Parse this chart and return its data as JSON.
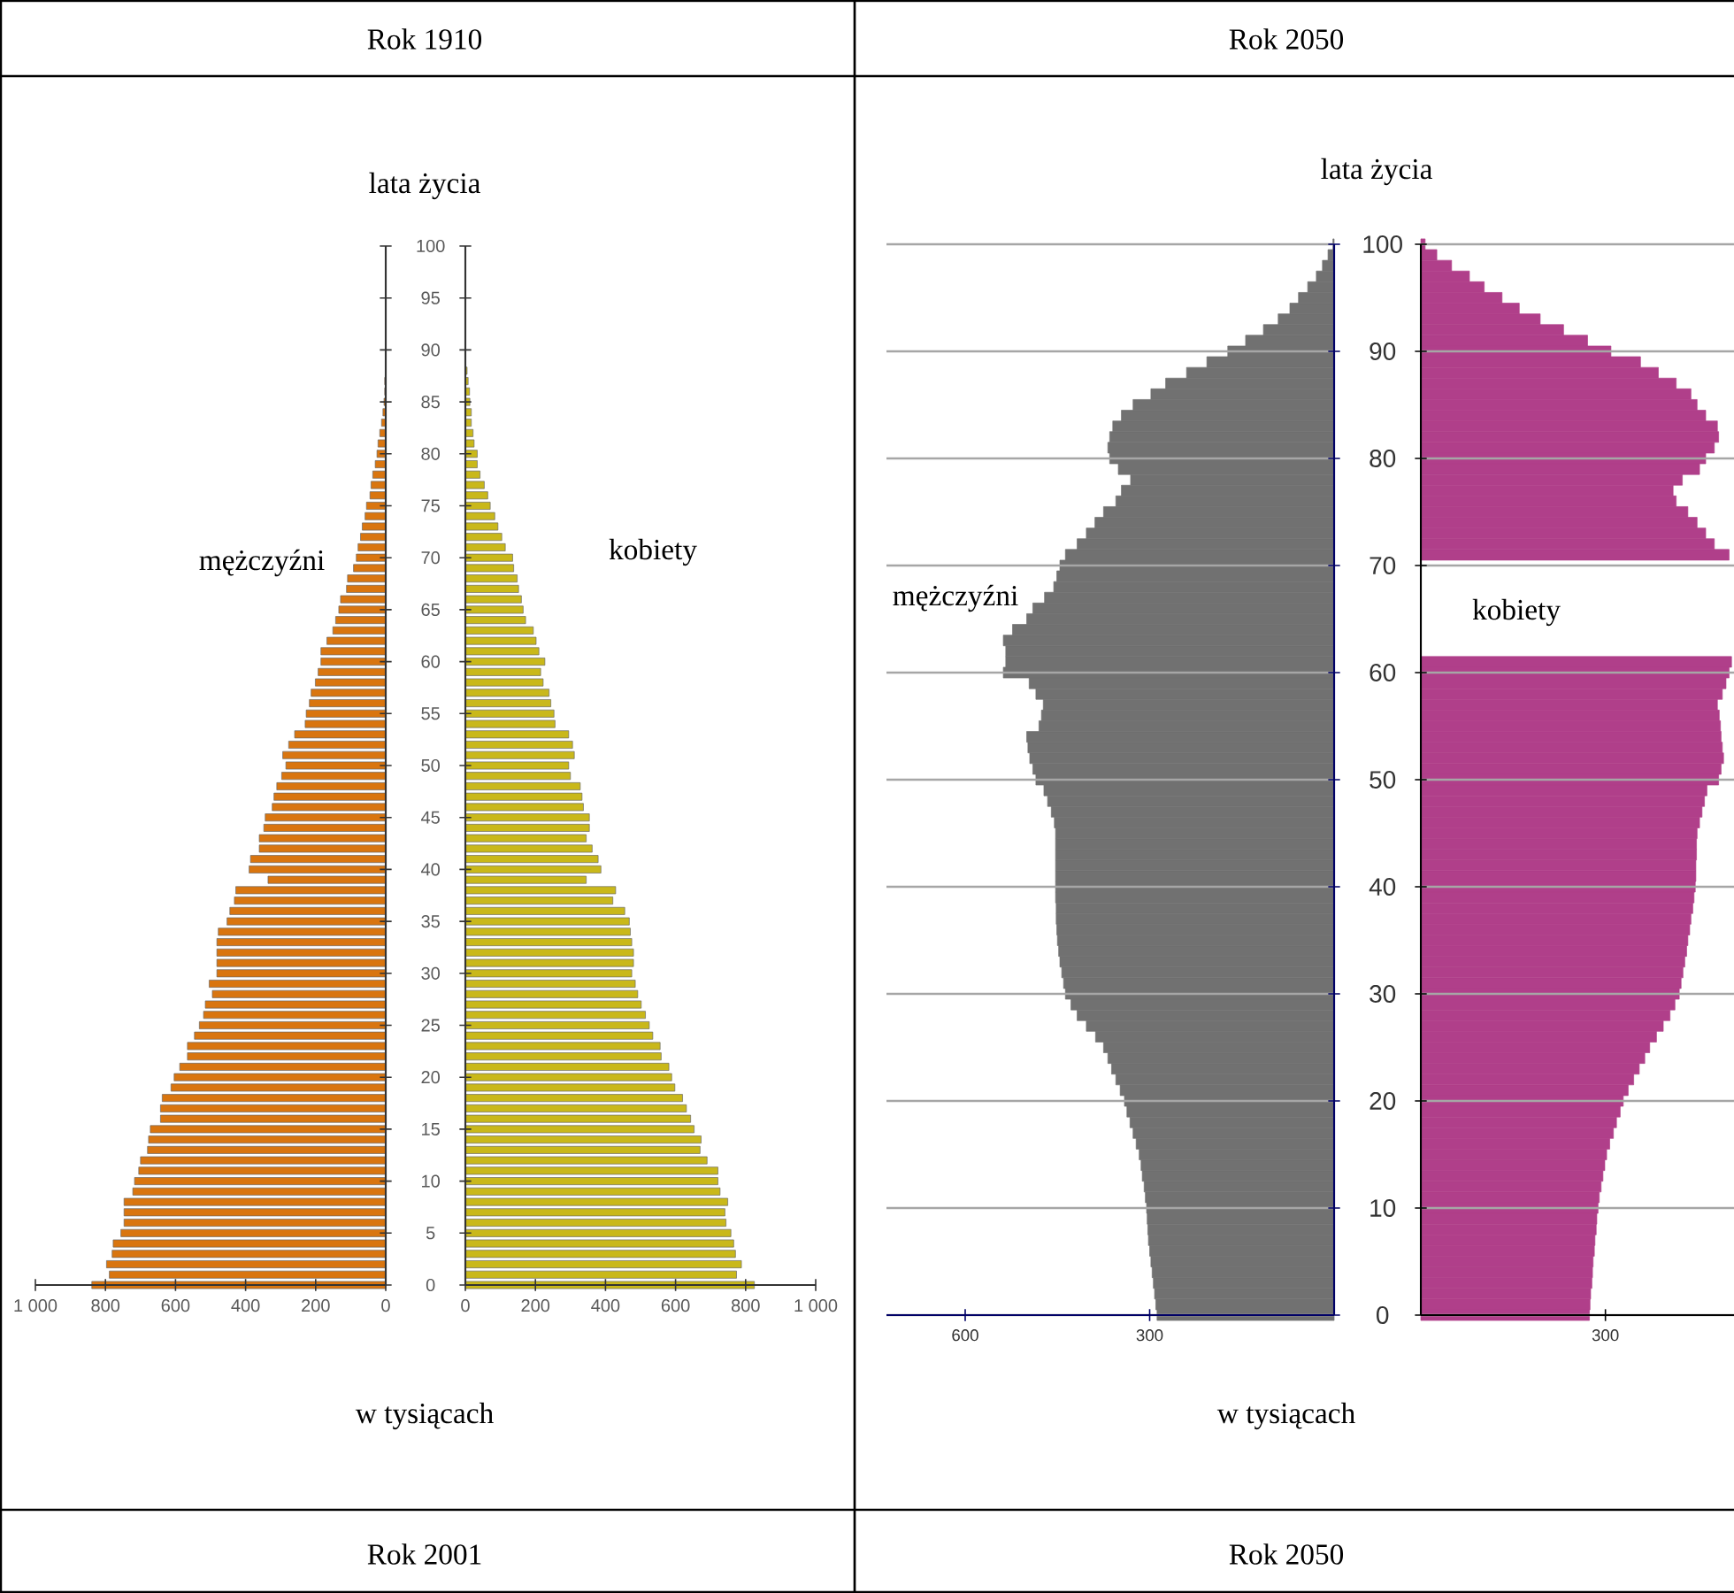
{
  "chart_data": [
    {
      "type": "bar",
      "orientation": "horizontal",
      "title": "Rok 1910",
      "ylabel": "lata życia",
      "xlabel": "w tysiącach",
      "annotations": [
        "Rok 2001"
      ],
      "x": [
        0,
        1,
        2,
        3,
        4,
        5,
        6,
        7,
        8,
        9,
        10,
        11,
        12,
        13,
        14,
        15,
        16,
        17,
        18,
        19,
        20,
        21,
        22,
        23,
        24,
        25,
        26,
        27,
        28,
        29,
        30,
        31,
        32,
        33,
        34,
        35,
        36,
        37,
        38,
        39,
        40,
        41,
        42,
        43,
        44,
        45,
        46,
        47,
        48,
        49,
        50,
        51,
        52,
        53,
        54,
        55,
        56,
        57,
        58,
        59,
        60,
        61,
        62,
        63,
        64,
        65,
        66,
        67,
        68,
        69,
        70,
        71,
        72,
        73,
        74,
        75,
        76,
        77,
        78,
        79,
        80,
        81,
        82,
        83,
        84,
        85,
        86,
        87
      ],
      "xlim": [
        1000,
        0
      ],
      "xticks": [
        {
          "value": 1000,
          "label": "1 000"
        },
        800,
        600,
        400,
        200,
        0
      ],
      "ylim": [
        0,
        100
      ],
      "yticks": [
        0,
        5,
        10,
        15,
        20,
        25,
        30,
        35,
        40,
        45,
        50,
        55,
        60,
        65,
        70,
        75,
        80,
        85,
        90,
        95,
        100
      ],
      "series": [
        {
          "name": "mężczyźni",
          "color": "#d9750f",
          "values": [
            839,
            789,
            797,
            781,
            778,
            756,
            747,
            747,
            747,
            722,
            717,
            705,
            700,
            680,
            677,
            672,
            643,
            643,
            638,
            613,
            604,
            588,
            566,
            566,
            546,
            532,
            520,
            515,
            495,
            504,
            482,
            482,
            482,
            482,
            478,
            453,
            445,
            432,
            428,
            336,
            390,
            386,
            361,
            361,
            348,
            344,
            324,
            319,
            311,
            297,
            285,
            294,
            277,
            260,
            230,
            227,
            218,
            213,
            201,
            193,
            185,
            185,
            168,
            151,
            143,
            134,
            129,
            112,
            109,
            92,
            84,
            79,
            72,
            67,
            59,
            55,
            45,
            42,
            37,
            30,
            25,
            22,
            17,
            12,
            8,
            5,
            3,
            3
          ]
        }
      ]
    },
    {
      "type": "bar",
      "orientation": "horizontal",
      "tick_labels": "x",
      "x": [
        0,
        1,
        2,
        3,
        4,
        5,
        6,
        7,
        8,
        9,
        10,
        11,
        12,
        13,
        14,
        15,
        16,
        17,
        18,
        19,
        20,
        21,
        22,
        23,
        24,
        25,
        26,
        27,
        28,
        29,
        30,
        31,
        32,
        33,
        34,
        35,
        36,
        37,
        38,
        39,
        40,
        41,
        42,
        43,
        44,
        45,
        46,
        47,
        48,
        49,
        50,
        51,
        52,
        53,
        54,
        55,
        56,
        57,
        58,
        59,
        60,
        61,
        62,
        63,
        64,
        65,
        66,
        67,
        68,
        69,
        70,
        71,
        72,
        73,
        74,
        75,
        76,
        77,
        78,
        79,
        80,
        81,
        82,
        83,
        84,
        85,
        86,
        87,
        88
      ],
      "xlim": [
        0,
        1000
      ],
      "xticks": [
        0,
        200,
        400,
        600,
        800,
        {
          "value": 1000,
          "label": "1 000"
        }
      ],
      "ylim": [
        0,
        100
      ],
      "yticks": [
        0,
        5,
        10,
        15,
        20,
        25,
        30,
        35,
        40,
        45,
        50,
        55,
        60,
        65,
        70,
        75,
        80,
        85,
        90,
        95,
        100
      ],
      "series": [
        {
          "name": "kobiety",
          "color": "#c9b81a",
          "values": [
            825,
            774,
            788,
            771,
            766,
            758,
            744,
            741,
            749,
            727,
            721,
            721,
            690,
            670,
            673,
            653,
            643,
            631,
            620,
            598,
            589,
            581,
            559,
            556,
            535,
            525,
            514,
            502,
            492,
            485,
            475,
            480,
            480,
            475,
            471,
            468,
            455,
            421,
            429,
            345,
            387,
            379,
            362,
            345,
            354,
            354,
            337,
            333,
            328,
            300,
            295,
            311,
            306,
            295,
            256,
            253,
            244,
            239,
            222,
            215,
            227,
            210,
            202,
            194,
            172,
            165,
            160,
            152,
            148,
            138,
            135,
            114,
            104,
            93,
            84,
            71,
            64,
            54,
            42,
            34,
            34,
            25,
            22,
            17,
            17,
            13,
            12,
            8,
            5
          ]
        }
      ]
    },
    {
      "type": "bar",
      "orientation": "horizontal",
      "title": "Rok 2050",
      "ylabel": "lata życia",
      "xlabel": "w tysiącach",
      "annotations": [
        "Rok 2050"
      ],
      "grid": "y",
      "x": [
        0,
        1,
        2,
        3,
        4,
        5,
        6,
        7,
        8,
        9,
        10,
        11,
        12,
        13,
        14,
        15,
        16,
        17,
        18,
        19,
        20,
        21,
        22,
        23,
        24,
        25,
        26,
        27,
        28,
        29,
        30,
        31,
        32,
        33,
        34,
        35,
        36,
        37,
        38,
        39,
        40,
        41,
        42,
        43,
        44,
        45,
        46,
        47,
        48,
        49,
        50,
        51,
        52,
        53,
        54,
        55,
        56,
        57,
        58,
        59,
        60,
        61,
        62,
        63,
        64,
        65,
        66,
        67,
        68,
        69,
        70,
        71,
        72,
        73,
        74,
        75,
        76,
        77,
        78,
        79,
        80,
        81,
        82,
        83,
        84,
        85,
        86,
        87,
        88,
        89,
        90,
        91,
        92,
        93,
        94,
        95,
        96,
        97,
        98,
        99,
        100
      ],
      "xlim": [
        728,
        0
      ],
      "xticks": [
        600,
        300
      ],
      "ylim": [
        0,
        100
      ],
      "yticks": [
        0,
        10,
        20,
        30,
        40,
        50,
        60,
        70,
        80,
        90,
        100
      ],
      "series": [
        {
          "name": "mężczyźni",
          "color": "#717171",
          "values": [
            288,
            290,
            292,
            294,
            296,
            298,
            300,
            302,
            303,
            304,
            305,
            307,
            309,
            312,
            314,
            317,
            322,
            327,
            332,
            337,
            341,
            348,
            355,
            362,
            368,
            375,
            388,
            403,
            418,
            428,
            437,
            440,
            443,
            446,
            448,
            450,
            451,
            452,
            452,
            453,
            453,
            453,
            453,
            453,
            453,
            453,
            455,
            460,
            466,
            472,
            485,
            490,
            495,
            498,
            500,
            480,
            476,
            473,
            485,
            496,
            538,
            534,
            534,
            538,
            523,
            500,
            490,
            471,
            456,
            451,
            446,
            437,
            418,
            403,
            389,
            375,
            355,
            346,
            331,
            351,
            365,
            368,
            365,
            360,
            346,
            327,
            298,
            274,
            240,
            207,
            173,
            144,
            115,
            91,
            72,
            58,
            43,
            29,
            19,
            10,
            2
          ]
        }
      ]
    },
    {
      "type": "bar",
      "orientation": "horizontal",
      "tick_labels": "x",
      "grid": "y",
      "x": [
        0,
        1,
        2,
        3,
        4,
        5,
        6,
        7,
        8,
        9,
        10,
        11,
        12,
        13,
        14,
        15,
        16,
        17,
        18,
        19,
        20,
        21,
        22,
        23,
        24,
        25,
        26,
        27,
        28,
        29,
        30,
        31,
        32,
        33,
        34,
        35,
        36,
        37,
        38,
        39,
        40,
        41,
        42,
        43,
        44,
        45,
        46,
        47,
        48,
        49,
        50,
        51,
        52,
        53,
        54,
        55,
        56,
        57,
        58,
        59,
        60,
        61,
        62,
        63,
        64,
        65,
        66,
        67,
        68,
        69,
        70,
        71,
        72,
        73,
        74,
        75,
        76,
        77,
        78,
        79,
        80,
        81,
        82,
        83,
        84,
        85,
        86,
        87,
        88,
        89,
        90,
        91,
        92,
        93,
        94,
        95,
        96,
        97,
        98,
        99,
        100
      ],
      "xlim": [
        0,
        509
      ],
      "xticks": [
        300
      ],
      "ylim": [
        0,
        100
      ],
      "yticks": [
        0,
        10,
        20,
        30,
        40,
        50,
        60,
        70,
        80,
        90,
        100
      ],
      "series": [
        {
          "name": "kobiety",
          "color": "#b03f8a",
          "values": [
            274,
            275,
            276,
            278,
            279,
            280,
            282,
            283,
            285,
            286,
            288,
            290,
            293,
            296,
            299,
            302,
            307,
            313,
            318,
            324,
            329,
            337,
            346,
            355,
            364,
            372,
            383,
            394,
            405,
            413,
            420,
            423,
            426,
            429,
            432,
            434,
            437,
            439,
            442,
            444,
            446,
            447,
            447,
            448,
            448,
            449,
            453,
            457,
            461,
            465,
            484,
            488,
            492,
            490,
            488,
            487,
            485,
            482,
            490,
            496,
            501,
            505,
            null,
            null,
            null,
            null,
            null,
            null,
            null,
            null,
            null,
            501,
            477,
            463,
            449,
            434,
            415,
            410,
            425,
            453,
            463,
            477,
            484,
            482,
            463,
            449,
            439,
            415,
            386,
            357,
            309,
            271,
            232,
            194,
            160,
            132,
            103,
            79,
            50,
            26,
            7
          ]
        }
      ]
    }
  ]
}
